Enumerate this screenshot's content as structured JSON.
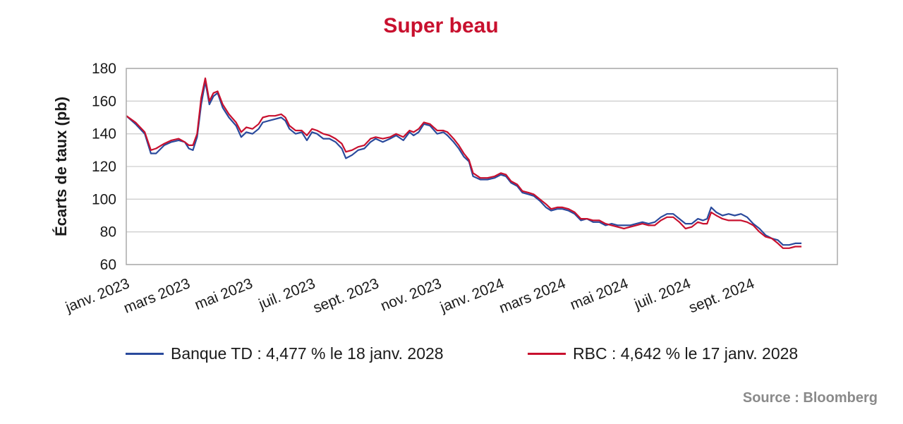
{
  "colors": {
    "title": "#c8102e",
    "td": "#2a4a9c",
    "rbc": "#c8102e",
    "grid": "#cfcfcf",
    "frame": "#aaaaaa",
    "source": "#8a8a8a"
  },
  "legend": {
    "td": "Banque TD : 4,477 % le 18 janv. 2028",
    "rbc": "RBC : 4,642 % le 17 janv. 2028"
  },
  "source": "Source : Bloomberg",
  "chart_data": {
    "type": "line",
    "title": "Super beau",
    "xlabel": "",
    "ylabel": "Écarts de taux (pb)",
    "ylim": [
      60,
      180
    ],
    "yticks": [
      60,
      80,
      100,
      120,
      140,
      160,
      180
    ],
    "xlim": [
      "2023-01-01",
      "2024-11-24"
    ],
    "xticks": [
      {
        "date": "2023-01-01",
        "label": "janv. 2023"
      },
      {
        "date": "2023-03-01",
        "label": "mars 2023"
      },
      {
        "date": "2023-05-01",
        "label": "mai 2023"
      },
      {
        "date": "2023-07-01",
        "label": "juil. 2023"
      },
      {
        "date": "2023-09-01",
        "label": "sept. 2023"
      },
      {
        "date": "2023-11-01",
        "label": "nov. 2023"
      },
      {
        "date": "2024-01-01",
        "label": "janv. 2024"
      },
      {
        "date": "2024-03-01",
        "label": "mars 2024"
      },
      {
        "date": "2024-05-01",
        "label": "mai 2024"
      },
      {
        "date": "2024-07-01",
        "label": "juil. 2024"
      },
      {
        "date": "2024-09-01",
        "label": "sept. 2024"
      }
    ],
    "grid": true,
    "legend_position": "bottom",
    "series": [
      {
        "name": "Banque TD : 4,477 % le 18 janv. 2028",
        "color": "#2a4a9c",
        "points": [
          [
            "2023-01-01",
            151
          ],
          [
            "2023-01-10",
            146
          ],
          [
            "2023-01-19",
            140
          ],
          [
            "2023-01-25",
            128
          ],
          [
            "2023-01-30",
            128
          ],
          [
            "2023-02-07",
            133
          ],
          [
            "2023-02-14",
            135
          ],
          [
            "2023-02-21",
            136
          ],
          [
            "2023-02-27",
            135
          ],
          [
            "2023-03-03",
            131
          ],
          [
            "2023-03-07",
            130
          ],
          [
            "2023-03-11",
            138
          ],
          [
            "2023-03-15",
            158
          ],
          [
            "2023-03-19",
            172
          ],
          [
            "2023-03-23",
            158
          ],
          [
            "2023-03-27",
            163
          ],
          [
            "2023-03-31",
            165
          ],
          [
            "2023-04-05",
            156
          ],
          [
            "2023-04-11",
            150
          ],
          [
            "2023-04-18",
            145
          ],
          [
            "2023-04-23",
            138
          ],
          [
            "2023-04-28",
            141
          ],
          [
            "2023-05-04",
            140
          ],
          [
            "2023-05-10",
            143
          ],
          [
            "2023-05-14",
            147
          ],
          [
            "2023-05-20",
            148
          ],
          [
            "2023-05-26",
            149
          ],
          [
            "2023-06-01",
            150
          ],
          [
            "2023-06-05",
            148
          ],
          [
            "2023-06-09",
            143
          ],
          [
            "2023-06-15",
            140
          ],
          [
            "2023-06-21",
            141
          ],
          [
            "2023-06-26",
            136
          ],
          [
            "2023-07-01",
            141
          ],
          [
            "2023-07-06",
            140
          ],
          [
            "2023-07-12",
            137
          ],
          [
            "2023-07-18",
            137
          ],
          [
            "2023-07-24",
            135
          ],
          [
            "2023-07-30",
            131
          ],
          [
            "2023-08-03",
            125
          ],
          [
            "2023-08-09",
            127
          ],
          [
            "2023-08-15",
            130
          ],
          [
            "2023-08-21",
            131
          ],
          [
            "2023-08-27",
            135
          ],
          [
            "2023-09-01",
            137
          ],
          [
            "2023-09-08",
            135
          ],
          [
            "2023-09-15",
            137
          ],
          [
            "2023-09-21",
            139
          ],
          [
            "2023-09-28",
            136
          ],
          [
            "2023-10-04",
            141
          ],
          [
            "2023-10-08",
            139
          ],
          [
            "2023-10-13",
            141
          ],
          [
            "2023-10-18",
            146
          ],
          [
            "2023-10-24",
            145
          ],
          [
            "2023-10-31",
            140
          ],
          [
            "2023-11-06",
            141
          ],
          [
            "2023-11-10",
            139
          ],
          [
            "2023-11-16",
            135
          ],
          [
            "2023-11-21",
            131
          ],
          [
            "2023-11-26",
            126
          ],
          [
            "2023-12-01",
            123
          ],
          [
            "2023-12-05",
            114
          ],
          [
            "2023-12-12",
            112
          ],
          [
            "2023-12-19",
            112
          ],
          [
            "2023-12-26",
            113
          ],
          [
            "2024-01-01",
            115
          ],
          [
            "2024-01-06",
            114
          ],
          [
            "2024-01-11",
            110
          ],
          [
            "2024-01-17",
            108
          ],
          [
            "2024-01-22",
            104
          ],
          [
            "2024-01-28",
            103
          ],
          [
            "2024-02-02",
            102
          ],
          [
            "2024-02-08",
            99
          ],
          [
            "2024-02-14",
            95
          ],
          [
            "2024-02-19",
            93
          ],
          [
            "2024-02-25",
            94
          ],
          [
            "2024-03-01",
            94
          ],
          [
            "2024-03-07",
            93
          ],
          [
            "2024-03-13",
            91
          ],
          [
            "2024-03-19",
            87
          ],
          [
            "2024-03-25",
            88
          ],
          [
            "2024-03-31",
            86
          ],
          [
            "2024-04-06",
            86
          ],
          [
            "2024-04-12",
            84
          ],
          [
            "2024-04-18",
            85
          ],
          [
            "2024-04-24",
            84
          ],
          [
            "2024-04-30",
            84
          ],
          [
            "2024-05-06",
            84
          ],
          [
            "2024-05-12",
            85
          ],
          [
            "2024-05-18",
            86
          ],
          [
            "2024-05-24",
            85
          ],
          [
            "2024-05-30",
            86
          ],
          [
            "2024-06-05",
            89
          ],
          [
            "2024-06-11",
            91
          ],
          [
            "2024-06-17",
            91
          ],
          [
            "2024-06-23",
            88
          ],
          [
            "2024-06-29",
            85
          ],
          [
            "2024-07-05",
            85
          ],
          [
            "2024-07-11",
            88
          ],
          [
            "2024-07-16",
            87
          ],
          [
            "2024-07-20",
            88
          ],
          [
            "2024-07-24",
            95
          ],
          [
            "2024-07-29",
            92
          ],
          [
            "2024-08-04",
            90
          ],
          [
            "2024-08-10",
            91
          ],
          [
            "2024-08-16",
            90
          ],
          [
            "2024-08-22",
            91
          ],
          [
            "2024-08-28",
            89
          ],
          [
            "2024-09-03",
            85
          ],
          [
            "2024-09-09",
            82
          ],
          [
            "2024-09-15",
            78
          ],
          [
            "2024-09-21",
            76
          ],
          [
            "2024-09-27",
            75
          ],
          [
            "2024-10-02",
            72
          ],
          [
            "2024-10-08",
            72
          ],
          [
            "2024-10-14",
            73
          ],
          [
            "2024-10-20",
            73
          ]
        ]
      },
      {
        "name": "RBC : 4,642 % le 17 janv. 2028",
        "color": "#c8102e",
        "points": [
          [
            "2023-01-01",
            151
          ],
          [
            "2023-01-10",
            147
          ],
          [
            "2023-01-19",
            141
          ],
          [
            "2023-01-25",
            130
          ],
          [
            "2023-01-30",
            131
          ],
          [
            "2023-02-07",
            134
          ],
          [
            "2023-02-14",
            136
          ],
          [
            "2023-02-21",
            137
          ],
          [
            "2023-02-27",
            135
          ],
          [
            "2023-03-03",
            133
          ],
          [
            "2023-03-07",
            133
          ],
          [
            "2023-03-11",
            140
          ],
          [
            "2023-03-15",
            162
          ],
          [
            "2023-03-19",
            174
          ],
          [
            "2023-03-23",
            160
          ],
          [
            "2023-03-27",
            165
          ],
          [
            "2023-03-31",
            166
          ],
          [
            "2023-04-05",
            158
          ],
          [
            "2023-04-11",
            152
          ],
          [
            "2023-04-18",
            147
          ],
          [
            "2023-04-23",
            141
          ],
          [
            "2023-04-28",
            144
          ],
          [
            "2023-05-04",
            143
          ],
          [
            "2023-05-10",
            146
          ],
          [
            "2023-05-14",
            150
          ],
          [
            "2023-05-20",
            151
          ],
          [
            "2023-05-26",
            151
          ],
          [
            "2023-06-01",
            152
          ],
          [
            "2023-06-05",
            150
          ],
          [
            "2023-06-09",
            145
          ],
          [
            "2023-06-15",
            142
          ],
          [
            "2023-06-21",
            142
          ],
          [
            "2023-06-26",
            139
          ],
          [
            "2023-07-01",
            143
          ],
          [
            "2023-07-06",
            142
          ],
          [
            "2023-07-12",
            140
          ],
          [
            "2023-07-18",
            139
          ],
          [
            "2023-07-24",
            137
          ],
          [
            "2023-07-30",
            134
          ],
          [
            "2023-08-03",
            129
          ],
          [
            "2023-08-09",
            130
          ],
          [
            "2023-08-15",
            132
          ],
          [
            "2023-08-21",
            133
          ],
          [
            "2023-08-27",
            137
          ],
          [
            "2023-09-01",
            138
          ],
          [
            "2023-09-08",
            137
          ],
          [
            "2023-09-15",
            138
          ],
          [
            "2023-09-21",
            140
          ],
          [
            "2023-09-28",
            138
          ],
          [
            "2023-10-04",
            142
          ],
          [
            "2023-10-08",
            141
          ],
          [
            "2023-10-13",
            143
          ],
          [
            "2023-10-18",
            147
          ],
          [
            "2023-10-24",
            146
          ],
          [
            "2023-10-31",
            142
          ],
          [
            "2023-11-06",
            142
          ],
          [
            "2023-11-10",
            141
          ],
          [
            "2023-11-16",
            137
          ],
          [
            "2023-11-21",
            133
          ],
          [
            "2023-11-26",
            128
          ],
          [
            "2023-12-01",
            124
          ],
          [
            "2023-12-05",
            116
          ],
          [
            "2023-12-12",
            113
          ],
          [
            "2023-12-19",
            113
          ],
          [
            "2023-12-26",
            114
          ],
          [
            "2024-01-01",
            116
          ],
          [
            "2024-01-06",
            115
          ],
          [
            "2024-01-11",
            111
          ],
          [
            "2024-01-17",
            109
          ],
          [
            "2024-01-22",
            105
          ],
          [
            "2024-01-28",
            104
          ],
          [
            "2024-02-02",
            103
          ],
          [
            "2024-02-08",
            100
          ],
          [
            "2024-02-14",
            97
          ],
          [
            "2024-02-19",
            94
          ],
          [
            "2024-02-25",
            95
          ],
          [
            "2024-03-01",
            95
          ],
          [
            "2024-03-07",
            94
          ],
          [
            "2024-03-13",
            92
          ],
          [
            "2024-03-19",
            88
          ],
          [
            "2024-03-25",
            88
          ],
          [
            "2024-03-31",
            87
          ],
          [
            "2024-04-06",
            87
          ],
          [
            "2024-04-12",
            85
          ],
          [
            "2024-04-18",
            84
          ],
          [
            "2024-04-24",
            83
          ],
          [
            "2024-04-30",
            82
          ],
          [
            "2024-05-06",
            83
          ],
          [
            "2024-05-12",
            84
          ],
          [
            "2024-05-18",
            85
          ],
          [
            "2024-05-24",
            84
          ],
          [
            "2024-05-30",
            84
          ],
          [
            "2024-06-05",
            87
          ],
          [
            "2024-06-11",
            89
          ],
          [
            "2024-06-17",
            89
          ],
          [
            "2024-06-23",
            86
          ],
          [
            "2024-06-29",
            82
          ],
          [
            "2024-07-05",
            83
          ],
          [
            "2024-07-11",
            86
          ],
          [
            "2024-07-16",
            85
          ],
          [
            "2024-07-20",
            85
          ],
          [
            "2024-07-24",
            92
          ],
          [
            "2024-07-29",
            90
          ],
          [
            "2024-08-04",
            88
          ],
          [
            "2024-08-10",
            87
          ],
          [
            "2024-08-16",
            87
          ],
          [
            "2024-08-22",
            87
          ],
          [
            "2024-08-28",
            86
          ],
          [
            "2024-09-03",
            84
          ],
          [
            "2024-09-09",
            80
          ],
          [
            "2024-09-15",
            77
          ],
          [
            "2024-09-21",
            76
          ],
          [
            "2024-09-27",
            73
          ],
          [
            "2024-10-02",
            70
          ],
          [
            "2024-10-08",
            70
          ],
          [
            "2024-10-14",
            71
          ],
          [
            "2024-10-20",
            71
          ]
        ]
      }
    ]
  }
}
